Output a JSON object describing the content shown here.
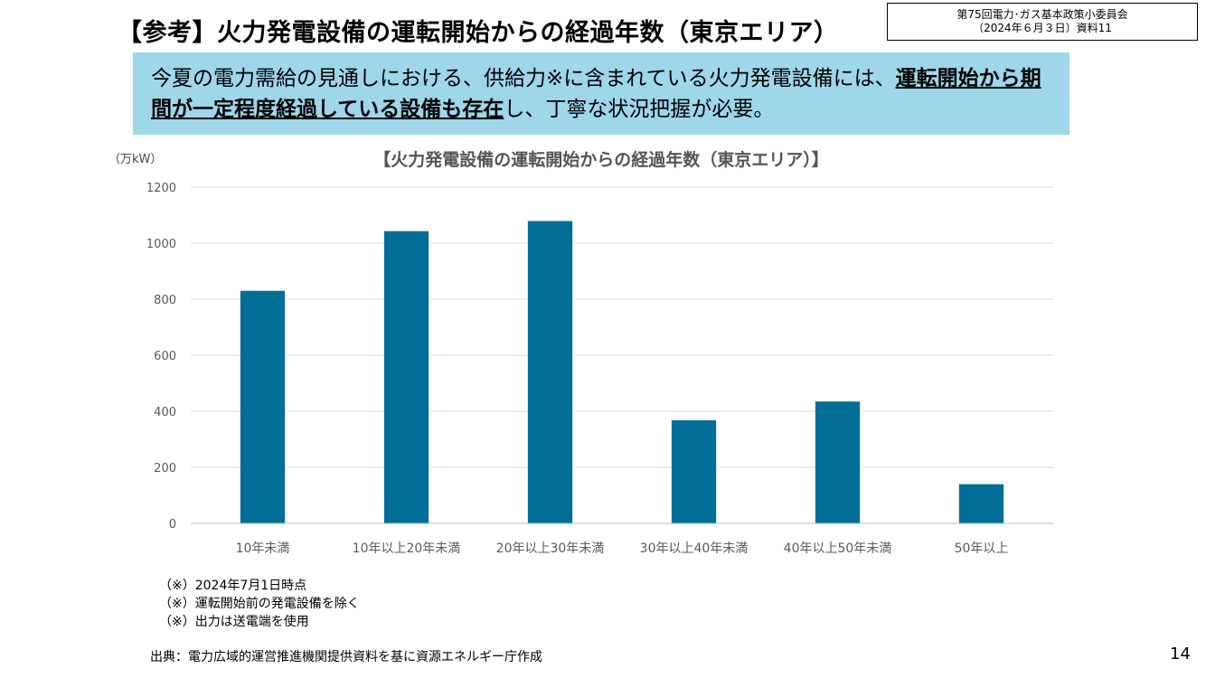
{
  "slide": {
    "title": "【参考】火力発電設備の運転開始からの経過年数（東京エリア）",
    "meeting_line1": "第75回電力･ガス基本政策小委員会",
    "meeting_line2": "（2024年６月３日）資料11",
    "summary_part1": "今夏の電力需給の見通しにおける、供給力※に含まれている火力発電設備には、",
    "summary_emphasis": "運転開始から期間が一定程度経過している設備も存在",
    "summary_part2": "し、丁寧な状況把握が必要。",
    "summary_bg_color": "#9ed6ea",
    "notes": [
      "（※）2024年7月1日時点",
      "（※）運転開始前の発電設備を除く",
      "（※）出力は送電端を使用"
    ],
    "source": "出典：電力広域的運営推進機関提供資料を基に資源エネルギー庁作成",
    "page_number": "14"
  },
  "chart_data": {
    "type": "bar",
    "title": "【火力発電設備の運転開始からの経過年数（東京エリア）】",
    "unit_label": "（万kW）",
    "categories": [
      "10年未満",
      "10年以上20年未満",
      "20年以上30年未満",
      "30年以上40年未満",
      "40年以上50年未満",
      "50年以上"
    ],
    "values": [
      830,
      1043,
      1079,
      368,
      435,
      140
    ],
    "ylim": [
      0,
      1200
    ],
    "yticks": [
      0,
      200,
      400,
      600,
      800,
      1000,
      1200
    ],
    "grid": true,
    "legend": "none",
    "bar_color": "#006e96"
  }
}
